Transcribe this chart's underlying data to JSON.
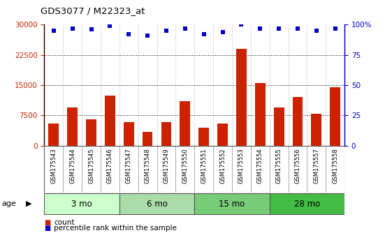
{
  "title": "GDS3077 / M22323_at",
  "samples": [
    "GSM175543",
    "GSM175544",
    "GSM175545",
    "GSM175546",
    "GSM175547",
    "GSM175548",
    "GSM175549",
    "GSM175550",
    "GSM175551",
    "GSM175552",
    "GSM175553",
    "GSM175554",
    "GSM175555",
    "GSM175556",
    "GSM175557",
    "GSM175558"
  ],
  "bar_values": [
    5500,
    9500,
    6500,
    12500,
    5800,
    3500,
    5800,
    11000,
    4500,
    5500,
    24000,
    15500,
    9500,
    12000,
    8000,
    14500
  ],
  "bar_color": "#cc2200",
  "percentile_values": [
    95,
    97,
    96,
    99,
    92,
    91,
    95,
    97,
    92,
    94,
    100,
    97,
    97,
    97,
    95,
    97
  ],
  "ylim_left": [
    0,
    30000
  ],
  "ylim_right": [
    0,
    100
  ],
  "yticks_left": [
    0,
    7500,
    15000,
    22500,
    30000
  ],
  "yticks_right": [
    0,
    25,
    50,
    75,
    100
  ],
  "ytick_right_labels": [
    "0",
    "25",
    "50",
    "75",
    "100%"
  ],
  "groups": [
    {
      "label": "3 mo",
      "start": 0,
      "end": 4
    },
    {
      "label": "6 mo",
      "start": 4,
      "end": 8
    },
    {
      "label": "15 mo",
      "start": 8,
      "end": 12
    },
    {
      "label": "28 mo",
      "start": 12,
      "end": 16
    }
  ],
  "group_colors": [
    "#ccffcc",
    "#aaddaa",
    "#77cc77",
    "#44bb44"
  ],
  "age_label": "age",
  "legend_count_color": "#cc2200",
  "legend_percentile_color": "#0000cc",
  "plot_bg": "#ffffff",
  "blue_dot_color": "#0000cc",
  "right_axis_color": "#0000cc",
  "left_axis_color": "#cc2200",
  "gray_strip_color": "#c8c8c8",
  "grid_line_values": [
    7500,
    15000,
    22500
  ]
}
